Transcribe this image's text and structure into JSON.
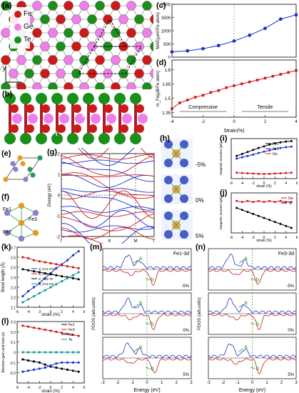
{
  "labels": {
    "a": "(a)",
    "b": "(b)",
    "c": "(c)",
    "d": "(d)",
    "e": "(e)",
    "f": "(f)",
    "g": "(g)",
    "h": "(h)",
    "i": "(i)",
    "j": "(j)",
    "k": "(k)",
    "l": "(l)",
    "m": "(m)",
    "n": "(n)"
  },
  "legend_a": [
    {
      "label": "Fe",
      "color": "#cc1a1a"
    },
    {
      "label": "Ge",
      "color": "#ee7fe8"
    },
    {
      "label": "Te",
      "color": "#1a8f1a"
    }
  ],
  "axis_a": {
    "y": "y",
    "x": "x"
  },
  "layer_b": {
    "I_top": "I",
    "II": "II",
    "I_bottom": "I"
  },
  "fe_f": {
    "fe1": "Fe1",
    "fe2": "Fe2",
    "fe3": "Fe3"
  },
  "strain_h": [
    "-5%",
    "0%",
    "5%"
  ],
  "panel_m": {
    "title": "Fe1-3d",
    "strains": [
      "-5%",
      "0%",
      "5%"
    ],
    "a": "a",
    "b": "b"
  },
  "panel_n": {
    "title": "Fe3-3d",
    "strains": [
      "-5%",
      "0%",
      "5%"
    ],
    "a": "a",
    "b": "b"
  },
  "pdos_axis": {
    "xlabel": "Energy (eV)",
    "ylabel": "PDOS (arb.units)",
    "xticks": [
      "-3",
      "-2",
      "-1",
      "0",
      "1",
      "2",
      "3"
    ]
  },
  "chart_data": [
    {
      "id": "c",
      "type": "line",
      "ylabel": "MAE(μeV/Fe atom)",
      "x": [
        -4,
        -3,
        -2,
        -1,
        0,
        1,
        2,
        3,
        4
      ],
      "values": [
        200,
        240,
        320,
        440,
        610,
        830,
        1090,
        1440,
        1600
      ],
      "ylim": [
        0,
        2000
      ],
      "yticks": [
        0,
        500,
        1000,
        1500,
        2000
      ],
      "color": "#1a2fcc"
    },
    {
      "id": "d",
      "type": "line",
      "ylabel": "m_Fe(μB/Fe atom)",
      "xlabel": "Strain(%)",
      "x": [
        -4,
        -3.5,
        -3,
        -2.5,
        -2,
        -1.5,
        -1,
        -0.5,
        0,
        0.5,
        1,
        1.5,
        2,
        2.5,
        3,
        3.5,
        4
      ],
      "values": [
        1.39,
        1.45,
        1.48,
        1.51,
        1.53,
        1.56,
        1.58,
        1.61,
        1.63,
        1.65,
        1.67,
        1.69,
        1.71,
        1.73,
        1.75,
        1.77,
        1.79
      ],
      "ylim": [
        1.3,
        1.9
      ],
      "yticks": [
        1.35,
        1.5,
        1.65,
        1.8
      ],
      "xticks": [
        -4,
        -2,
        0,
        2,
        4
      ],
      "annotations": [
        "Compressive",
        "Tensile"
      ],
      "color": "#cc1a1a"
    },
    {
      "id": "g",
      "type": "line",
      "ylabel": "Energy (eV)",
      "ylim": [
        -2,
        2
      ],
      "yticks": [
        -2,
        -1,
        0,
        1,
        2
      ],
      "xticklabels": [
        "Γ",
        "K",
        "M",
        "Γ"
      ]
    },
    {
      "id": "i",
      "type": "line",
      "xlabel": "strain (%)",
      "ylabel": "Magnetic moment (μB)",
      "x": [
        -5,
        -4,
        -3,
        -2,
        -1,
        0,
        1,
        2,
        3,
        4,
        5
      ],
      "series": [
        {
          "name": "Fe1",
          "values": [
            1.2,
            1.35,
            1.5,
            1.65,
            1.8,
            1.92,
            2.05,
            2.15,
            2.22,
            2.28,
            2.32
          ],
          "color": "#000000"
        },
        {
          "name": "Fe3",
          "values": [
            1.0,
            1.1,
            1.2,
            1.3,
            1.42,
            1.52,
            1.62,
            1.72,
            1.8,
            1.86,
            1.9
          ],
          "color": "#1a2fcc"
        },
        {
          "name": "Ge",
          "values": [
            -0.05,
            -0.08,
            -0.1,
            -0.12,
            -0.14,
            -0.15,
            -0.14,
            -0.12,
            -0.1,
            -0.08,
            -0.06
          ],
          "color": "#cc1a1a"
        }
      ],
      "ylim": [
        -0.5,
        2.5
      ]
    },
    {
      "id": "j",
      "type": "line",
      "xlabel": "strain (%)",
      "ylabel": "Magnetic moment (μB)",
      "x": [
        -5,
        -4,
        -3,
        -2,
        -1,
        0,
        1,
        2,
        3,
        4,
        5
      ],
      "series": [
        {
          "name": "Ge",
          "values": [
            0.12,
            0.11,
            0.12,
            0.11,
            0.12,
            0.11,
            0.12,
            0.11,
            0.12,
            0.11,
            0.11
          ],
          "color": "#cc1a1a"
        },
        {
          "name": "Te",
          "values": [
            0.05,
            0.03,
            0.01,
            -0.01,
            -0.03,
            -0.05,
            -0.07,
            -0.09,
            -0.11,
            -0.13,
            -0.15
          ],
          "color": "#000000"
        }
      ],
      "ylim": [
        -0.2,
        0.2
      ]
    },
    {
      "id": "k",
      "type": "line",
      "xlabel": "strain (%)",
      "ylabel": "Bond length (Å)",
      "x": [
        -5,
        -4,
        -3,
        -2,
        -1,
        0,
        1,
        2,
        3,
        4,
        5
      ],
      "series": [
        {
          "name": "d_Fe1-Fe3",
          "values": [
            2.21,
            2.26,
            2.3,
            2.34,
            2.39,
            2.44,
            2.49,
            2.53,
            2.57,
            2.62,
            2.66
          ],
          "color": "#1a2fcc"
        },
        {
          "name": "d_Fe1-Te",
          "values": [
            2.6,
            2.59,
            2.57,
            2.56,
            2.55,
            2.54,
            2.53,
            2.52,
            2.51,
            2.5,
            2.49
          ],
          "color": "#cc1a1a"
        },
        {
          "name": "d_Fe3-Te",
          "values": [
            2.48,
            2.47,
            2.46,
            2.45,
            2.44,
            2.43,
            2.42,
            2.41,
            2.4,
            2.39,
            2.38
          ],
          "color": "#000000"
        },
        {
          "name": "d_Fe3-Ge",
          "values": [
            2.15,
            2.18,
            2.21,
            2.24,
            2.27,
            2.3,
            2.33,
            2.36,
            2.39,
            2.42,
            2.45
          ],
          "color": "#149a9a"
        }
      ],
      "ylim": [
        2.1,
        2.7
      ],
      "yticks": [
        2.1,
        2.2,
        2.3,
        2.4,
        2.5,
        2.6,
        2.7
      ]
    },
    {
      "id": "l",
      "type": "line",
      "xlabel": "strain (%)",
      "ylabel": "Electron gain and loss (e)",
      "x": [
        -5,
        -4,
        -3,
        -2,
        -1,
        0,
        1,
        2,
        3,
        4,
        5
      ],
      "series": [
        {
          "name": "Fe1",
          "values": [
            -0.07,
            -0.08,
            -0.09,
            -0.1,
            -0.12,
            -0.14,
            -0.15,
            -0.16,
            -0.17,
            -0.18,
            -0.19
          ],
          "color": "#000000"
        },
        {
          "name": "Fe3",
          "values": [
            0.26,
            0.25,
            0.24,
            0.23,
            0.22,
            0.21,
            0.2,
            0.19,
            0.18,
            0.17,
            0.16
          ],
          "color": "#cc1a1a"
        },
        {
          "name": "Ge",
          "values": [
            -0.19,
            -0.18,
            -0.17,
            -0.16,
            -0.15,
            -0.13,
            -0.11,
            -0.1,
            -0.1,
            -0.1,
            -0.1
          ],
          "color": "#1a2fcc"
        },
        {
          "name": "Te",
          "values": [
            0.0,
            0.0,
            0.0,
            0.0,
            0.0,
            0.0,
            0.0,
            0.0,
            0.0,
            0.0,
            0.0
          ],
          "color": "#149a9a"
        }
      ],
      "ylim": [
        -0.3,
        0.3
      ],
      "yticks": [
        -0.2,
        -0.1,
        0.0,
        0.1,
        0.2,
        0.3
      ]
    }
  ]
}
